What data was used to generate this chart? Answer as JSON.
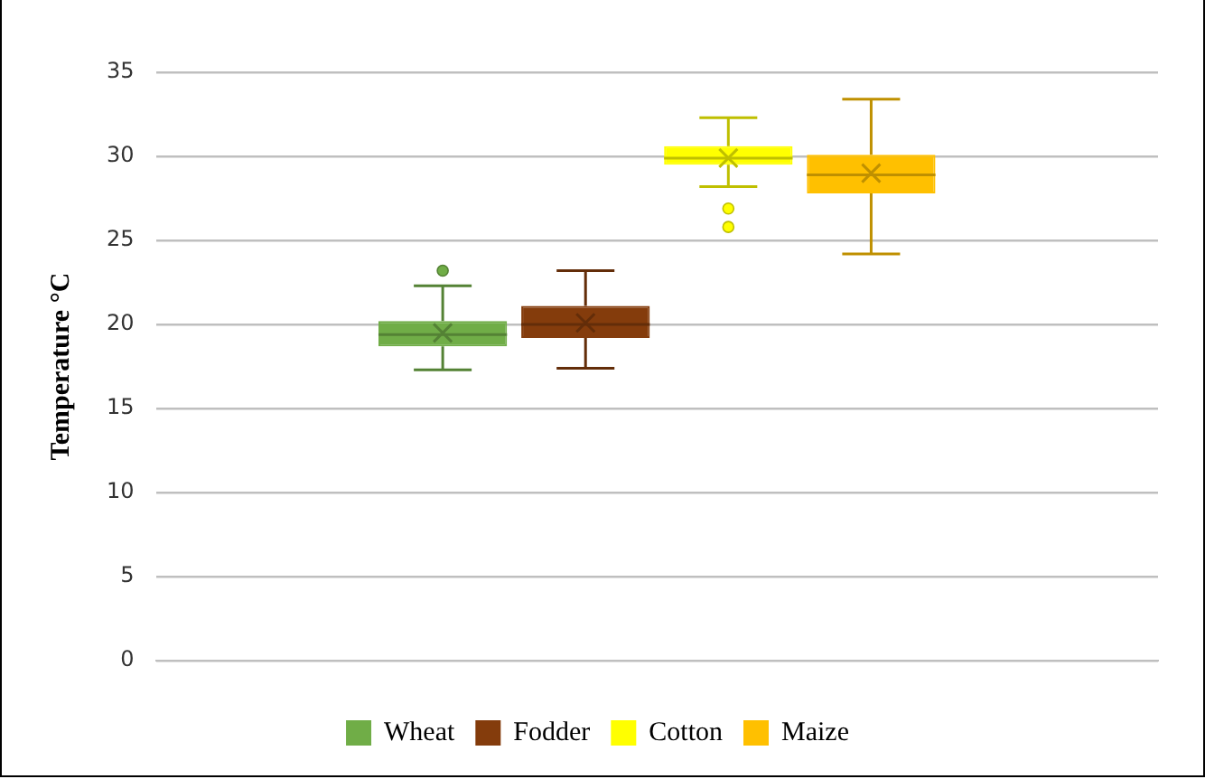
{
  "chart_data": {
    "type": "box",
    "ylabel": "Temperature °C",
    "categories": [
      null
    ],
    "ylim": [
      0,
      35
    ],
    "yticks": [
      0,
      5,
      10,
      15,
      20,
      25,
      30,
      35
    ],
    "grid": "y",
    "legend": "bottom",
    "series": [
      {
        "name": "Wheat",
        "color": "#70ad47",
        "boxes": [
          {
            "low": 17.3,
            "q1": 18.7,
            "median": 19.4,
            "q3": 20.2,
            "high": 22.3,
            "mean": 19.5,
            "outliers": [
              23.2
            ]
          }
        ]
      },
      {
        "name": "Fodder",
        "color": "#843c0c",
        "boxes": [
          {
            "low": 17.4,
            "q1": 19.2,
            "median": 20.0,
            "q3": 21.1,
            "high": 23.2,
            "mean": 20.1
          }
        ]
      },
      {
        "name": "Cotton",
        "color": "#ffff00",
        "boxes": [
          {
            "low": 28.2,
            "q1": 29.5,
            "median": 29.9,
            "q3": 30.6,
            "high": 32.3,
            "mean": 29.9,
            "outliers": [
              26.9,
              25.8
            ]
          }
        ]
      },
      {
        "name": "Maize",
        "color": "#ffc000",
        "boxes": [
          {
            "low": 24.2,
            "q1": 27.8,
            "median": 28.9,
            "q3": 30.1,
            "high": 33.4,
            "mean": 29.0
          }
        ]
      }
    ]
  }
}
